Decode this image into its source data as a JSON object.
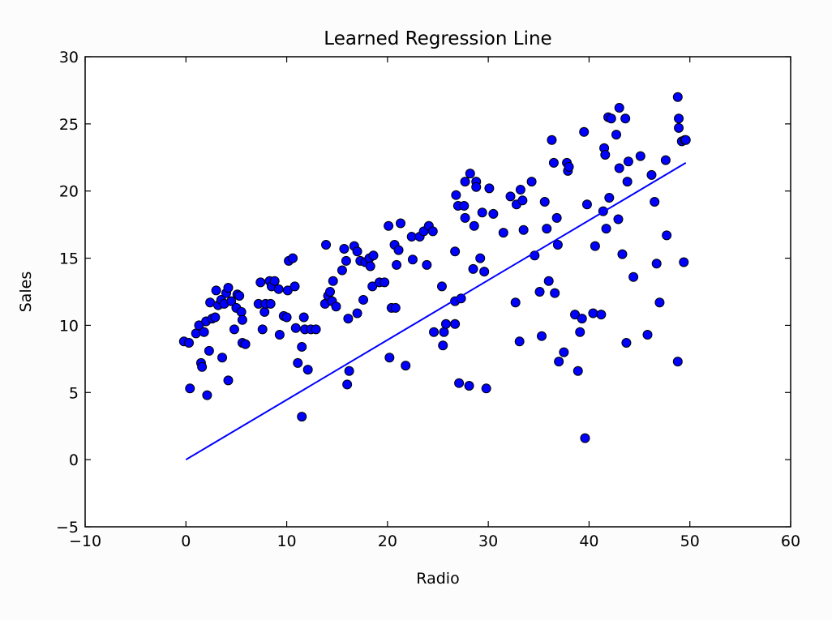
{
  "chart_data": {
    "type": "scatter",
    "title": "Learned Regression Line",
    "xlabel": "Radio",
    "ylabel": "Sales",
    "xlim": [
      -10,
      60
    ],
    "ylim": [
      -5,
      30
    ],
    "xticks": [
      "−10",
      "0",
      "10",
      "20",
      "30",
      "40",
      "50",
      "60"
    ],
    "xtick_values": [
      -10,
      0,
      10,
      20,
      30,
      40,
      50,
      60
    ],
    "yticks": [
      "−5",
      "0",
      "5",
      "10",
      "15",
      "20",
      "25",
      "30"
    ],
    "ytick_values": [
      -5,
      0,
      5,
      10,
      15,
      20,
      25,
      30
    ],
    "grid": false,
    "legend": "none",
    "colors": {
      "points": "#0000ff",
      "point_edge": "#000000",
      "line": "#0000ff"
    },
    "series": [
      {
        "kind": "scatter",
        "points": [
          [
            -0.2,
            8.8
          ],
          [
            0.3,
            8.7
          ],
          [
            0.4,
            5.3
          ],
          [
            1.0,
            9.4
          ],
          [
            1.3,
            10.0
          ],
          [
            1.5,
            7.2
          ],
          [
            1.6,
            6.9
          ],
          [
            1.8,
            9.5
          ],
          [
            2.0,
            10.3
          ],
          [
            2.1,
            4.8
          ],
          [
            2.3,
            8.1
          ],
          [
            2.4,
            11.7
          ],
          [
            2.6,
            10.5
          ],
          [
            2.9,
            10.6
          ],
          [
            3.0,
            12.6
          ],
          [
            3.2,
            11.5
          ],
          [
            3.5,
            11.9
          ],
          [
            3.6,
            7.6
          ],
          [
            3.8,
            11.6
          ],
          [
            4.0,
            12.4
          ],
          [
            4.2,
            12.8
          ],
          [
            4.2,
            5.9
          ],
          [
            4.5,
            11.8
          ],
          [
            4.8,
            9.7
          ],
          [
            5.0,
            11.3
          ],
          [
            5.1,
            12.3
          ],
          [
            5.3,
            12.2
          ],
          [
            5.5,
            11.0
          ],
          [
            5.6,
            10.4
          ],
          [
            5.6,
            8.7
          ],
          [
            5.9,
            8.6
          ],
          [
            7.2,
            11.6
          ],
          [
            7.4,
            13.2
          ],
          [
            7.6,
            9.7
          ],
          [
            7.8,
            11.0
          ],
          [
            7.9,
            11.6
          ],
          [
            8.3,
            13.3
          ],
          [
            8.4,
            11.6
          ],
          [
            8.5,
            12.9
          ],
          [
            8.8,
            13.3
          ],
          [
            9.2,
            12.7
          ],
          [
            9.3,
            9.3
          ],
          [
            9.7,
            10.7
          ],
          [
            10.0,
            10.6
          ],
          [
            10.1,
            12.6
          ],
          [
            10.2,
            14.8
          ],
          [
            10.6,
            15.0
          ],
          [
            10.8,
            12.9
          ],
          [
            10.9,
            9.8
          ],
          [
            11.1,
            7.2
          ],
          [
            11.5,
            3.2
          ],
          [
            11.5,
            8.4
          ],
          [
            11.7,
            10.6
          ],
          [
            11.8,
            9.7
          ],
          [
            12.1,
            6.7
          ],
          [
            12.4,
            9.7
          ],
          [
            12.9,
            9.7
          ],
          [
            13.8,
            11.6
          ],
          [
            13.9,
            16.0
          ],
          [
            14.1,
            12.2
          ],
          [
            14.3,
            12.5
          ],
          [
            14.5,
            11.8
          ],
          [
            14.6,
            13.3
          ],
          [
            14.9,
            11.4
          ],
          [
            15.5,
            14.1
          ],
          [
            15.7,
            15.7
          ],
          [
            15.9,
            14.8
          ],
          [
            16.0,
            5.6
          ],
          [
            16.1,
            10.5
          ],
          [
            16.2,
            6.6
          ],
          [
            16.7,
            15.9
          ],
          [
            17.0,
            15.5
          ],
          [
            17.0,
            10.9
          ],
          [
            17.3,
            14.8
          ],
          [
            17.6,
            11.9
          ],
          [
            17.8,
            14.7
          ],
          [
            18.2,
            15.0
          ],
          [
            18.3,
            14.4
          ],
          [
            18.5,
            12.9
          ],
          [
            18.6,
            15.2
          ],
          [
            19.2,
            13.2
          ],
          [
            19.7,
            13.2
          ],
          [
            20.1,
            17.4
          ],
          [
            20.2,
            7.6
          ],
          [
            20.4,
            11.3
          ],
          [
            20.7,
            16.0
          ],
          [
            20.8,
            11.3
          ],
          [
            20.9,
            14.5
          ],
          [
            21.1,
            15.6
          ],
          [
            21.3,
            17.6
          ],
          [
            21.8,
            7.0
          ],
          [
            22.4,
            16.6
          ],
          [
            22.5,
            14.9
          ],
          [
            23.2,
            16.6
          ],
          [
            23.6,
            17.0
          ],
          [
            23.9,
            14.5
          ],
          [
            24.1,
            17.4
          ],
          [
            24.5,
            17.0
          ],
          [
            24.6,
            9.5
          ],
          [
            25.4,
            12.9
          ],
          [
            25.5,
            8.5
          ],
          [
            25.6,
            9.5
          ],
          [
            25.8,
            10.1
          ],
          [
            26.7,
            15.5
          ],
          [
            26.7,
            11.8
          ],
          [
            26.7,
            10.1
          ],
          [
            26.8,
            19.7
          ],
          [
            27.0,
            18.9
          ],
          [
            27.1,
            5.7
          ],
          [
            27.3,
            12.0
          ],
          [
            27.6,
            18.9
          ],
          [
            27.7,
            18.0
          ],
          [
            27.7,
            20.7
          ],
          [
            28.1,
            5.5
          ],
          [
            28.2,
            21.3
          ],
          [
            28.5,
            14.2
          ],
          [
            28.6,
            17.4
          ],
          [
            28.8,
            20.7
          ],
          [
            28.8,
            20.3
          ],
          [
            29.2,
            15.0
          ],
          [
            29.4,
            18.4
          ],
          [
            29.6,
            14.0
          ],
          [
            29.8,
            5.3
          ],
          [
            30.1,
            20.2
          ],
          [
            30.5,
            18.3
          ],
          [
            31.5,
            16.9
          ],
          [
            32.2,
            19.6
          ],
          [
            32.7,
            11.7
          ],
          [
            32.8,
            19.0
          ],
          [
            33.1,
            8.8
          ],
          [
            33.2,
            20.1
          ],
          [
            33.4,
            19.3
          ],
          [
            33.5,
            17.1
          ],
          [
            34.3,
            20.7
          ],
          [
            34.6,
            15.2
          ],
          [
            35.1,
            12.5
          ],
          [
            35.3,
            9.2
          ],
          [
            35.6,
            19.2
          ],
          [
            35.8,
            17.2
          ],
          [
            36.0,
            13.3
          ],
          [
            36.3,
            23.8
          ],
          [
            36.5,
            22.1
          ],
          [
            36.6,
            12.4
          ],
          [
            36.8,
            18.0
          ],
          [
            36.9,
            16.0
          ],
          [
            37.0,
            7.3
          ],
          [
            37.5,
            8.0
          ],
          [
            37.8,
            22.1
          ],
          [
            37.9,
            21.5
          ],
          [
            38.0,
            21.8
          ],
          [
            38.6,
            10.8
          ],
          [
            38.9,
            6.6
          ],
          [
            39.1,
            9.5
          ],
          [
            39.3,
            10.5
          ],
          [
            39.5,
            24.4
          ],
          [
            39.6,
            1.6
          ],
          [
            39.8,
            19.0
          ],
          [
            40.4,
            10.9
          ],
          [
            40.6,
            15.9
          ],
          [
            41.2,
            10.8
          ],
          [
            41.4,
            18.5
          ],
          [
            41.5,
            23.2
          ],
          [
            41.6,
            22.7
          ],
          [
            41.7,
            17.2
          ],
          [
            41.9,
            25.5
          ],
          [
            42.0,
            19.5
          ],
          [
            42.2,
            25.4
          ],
          [
            42.7,
            24.2
          ],
          [
            42.9,
            17.9
          ],
          [
            43.0,
            21.7
          ],
          [
            43.0,
            26.2
          ],
          [
            43.3,
            15.3
          ],
          [
            43.6,
            25.4
          ],
          [
            43.7,
            8.7
          ],
          [
            43.8,
            20.7
          ],
          [
            43.9,
            22.2
          ],
          [
            44.4,
            13.6
          ],
          [
            45.1,
            22.6
          ],
          [
            45.8,
            9.3
          ],
          [
            46.2,
            21.2
          ],
          [
            46.5,
            19.2
          ],
          [
            46.7,
            14.6
          ],
          [
            47.0,
            11.7
          ],
          [
            47.6,
            22.3
          ],
          [
            47.7,
            16.7
          ],
          [
            48.8,
            27.0
          ],
          [
            48.8,
            7.3
          ],
          [
            48.9,
            24.7
          ],
          [
            48.9,
            25.4
          ],
          [
            49.2,
            23.7
          ],
          [
            49.4,
            14.7
          ],
          [
            49.5,
            23.8
          ],
          [
            49.6,
            23.8
          ]
        ]
      },
      {
        "kind": "line",
        "x": [
          0.0,
          49.6
        ],
        "y": [
          0.0,
          22.1
        ]
      }
    ]
  }
}
